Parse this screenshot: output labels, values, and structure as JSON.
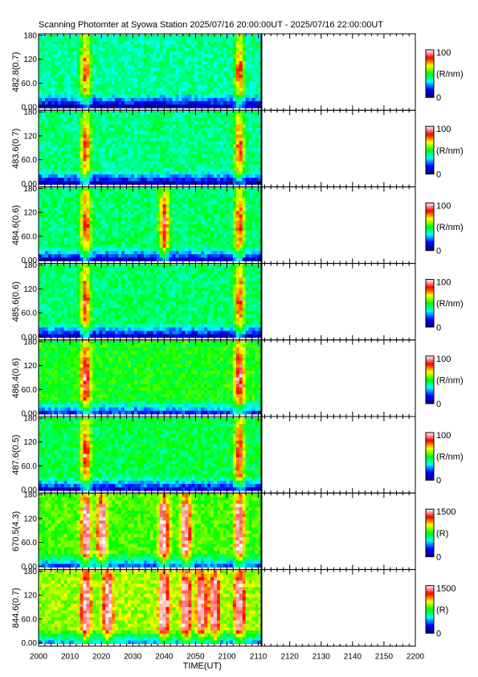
{
  "chart_data": {
    "type": "heatmap",
    "title": "Scanning Photomter at Syowa Station 2025/07/16 20:00:00UT - 2025/07/16 22:00:00UT",
    "xlabel": "TIME(UT)",
    "x_ticks": [
      "2000",
      "2010",
      "2020",
      "2030",
      "2040",
      "2050",
      "2100",
      "2110",
      "2120",
      "2130",
      "2140",
      "2150",
      "2200"
    ],
    "xlim_minutes_of_window": [
      0,
      120
    ],
    "data_end_minute": 71,
    "y_ticks": [
      "0.00",
      "60.0",
      "120",
      "180"
    ],
    "ylim": [
      0,
      180
    ],
    "colormap": [
      "#000080",
      "#0000ff",
      "#00ffff",
      "#00ff00",
      "#ffff00",
      "#ff0000",
      "#ffffff"
    ],
    "panels": [
      {
        "ylabel": "482.8(0.7)",
        "cbar_max": "100",
        "cbar_min": "0",
        "cbar_unit": "(R/nm)",
        "bright_events": [
          15,
          64
        ],
        "base_level": 0.38
      },
      {
        "ylabel": "483.6(0.7)",
        "cbar_max": "100",
        "cbar_min": "0",
        "cbar_unit": "(R/nm)",
        "bright_events": [
          15,
          64
        ],
        "base_level": 0.4
      },
      {
        "ylabel": "484.6(0.6)",
        "cbar_max": "100",
        "cbar_min": "0",
        "cbar_unit": "(R/nm)",
        "bright_events": [
          15,
          40,
          64
        ],
        "base_level": 0.42
      },
      {
        "ylabel": "485.6(0.6)",
        "cbar_max": "100",
        "cbar_min": "0",
        "cbar_unit": "(R/nm)",
        "bright_events": [
          15,
          64
        ],
        "base_level": 0.42
      },
      {
        "ylabel": "486.4(0.6)",
        "cbar_max": "100",
        "cbar_min": "0",
        "cbar_unit": "(R/nm)",
        "bright_events": [
          15,
          64
        ],
        "base_level": 0.5
      },
      {
        "ylabel": "487.6(0.5)",
        "cbar_max": "100",
        "cbar_min": "0",
        "cbar_unit": "(R/nm)",
        "bright_events": [
          15,
          64
        ],
        "base_level": 0.45
      },
      {
        "ylabel": "670.5(4.3)",
        "cbar_max": "1500",
        "cbar_min": "0",
        "cbar_unit": "(R)",
        "bright_events": [
          15,
          20,
          40,
          47,
          64
        ],
        "base_level": 0.55
      },
      {
        "ylabel": "844.6(0.7)",
        "cbar_max": "1500",
        "cbar_min": "0",
        "cbar_unit": "(R)",
        "bright_events": [
          15,
          22,
          40,
          47,
          52,
          56,
          64
        ],
        "base_level": 0.62
      }
    ]
  }
}
